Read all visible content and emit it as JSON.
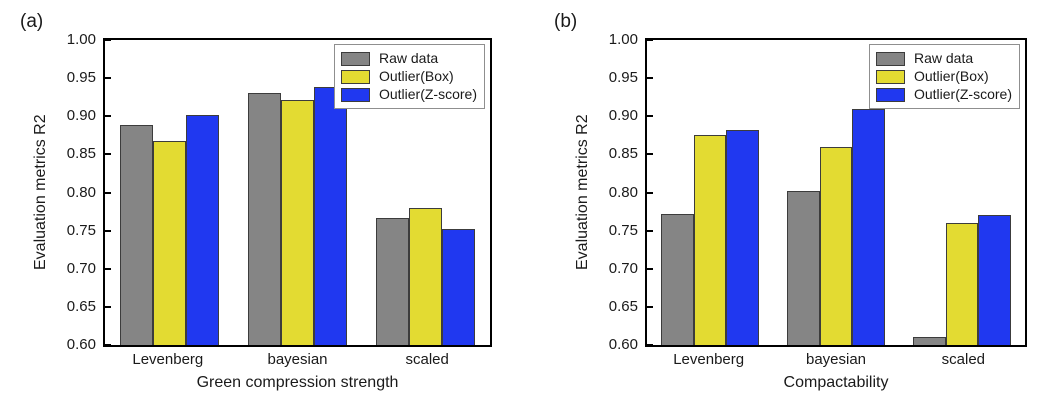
{
  "chart_data": [
    {
      "panel_label": "(a)",
      "type": "bar",
      "title": "",
      "xlabel": "Green compression strength",
      "ylabel": "Evaluation metrics R2",
      "ylim": [
        0.6,
        1.0
      ],
      "yticks": [
        "1.00",
        "0.95",
        "0.90",
        "0.85",
        "0.80",
        "0.75",
        "0.70",
        "0.65",
        "0.60"
      ],
      "categories": [
        "Levenberg",
        "bayesian",
        "scaled"
      ],
      "series": [
        {
          "name": "Raw data",
          "color": "#858585",
          "values": [
            0.888,
            0.93,
            0.766
          ]
        },
        {
          "name": "Outlier(Box)",
          "color": "#E3DB32",
          "values": [
            0.867,
            0.921,
            0.78
          ]
        },
        {
          "name": "Outlier(Z-score)",
          "color": "#2038F0",
          "values": [
            0.902,
            0.938,
            0.752
          ]
        }
      ],
      "legend_position": "top-right",
      "grid": false
    },
    {
      "panel_label": "(b)",
      "type": "bar",
      "title": "",
      "xlabel": "Compactability",
      "ylabel": "Evaluation metrics R2",
      "ylim": [
        0.6,
        1.0
      ],
      "yticks": [
        "1.00",
        "0.95",
        "0.90",
        "0.85",
        "0.80",
        "0.75",
        "0.70",
        "0.65",
        "0.60"
      ],
      "categories": [
        "Levenberg",
        "bayesian",
        "scaled"
      ],
      "series": [
        {
          "name": "Raw data",
          "color": "#858585",
          "values": [
            0.772,
            0.802,
            0.61
          ]
        },
        {
          "name": "Outlier(Box)",
          "color": "#E3DB32",
          "values": [
            0.875,
            0.86,
            0.76
          ]
        },
        {
          "name": "Outlier(Z-score)",
          "color": "#2038F0",
          "values": [
            0.882,
            0.91,
            0.77
          ]
        }
      ],
      "legend_position": "top-right",
      "grid": false
    }
  ]
}
